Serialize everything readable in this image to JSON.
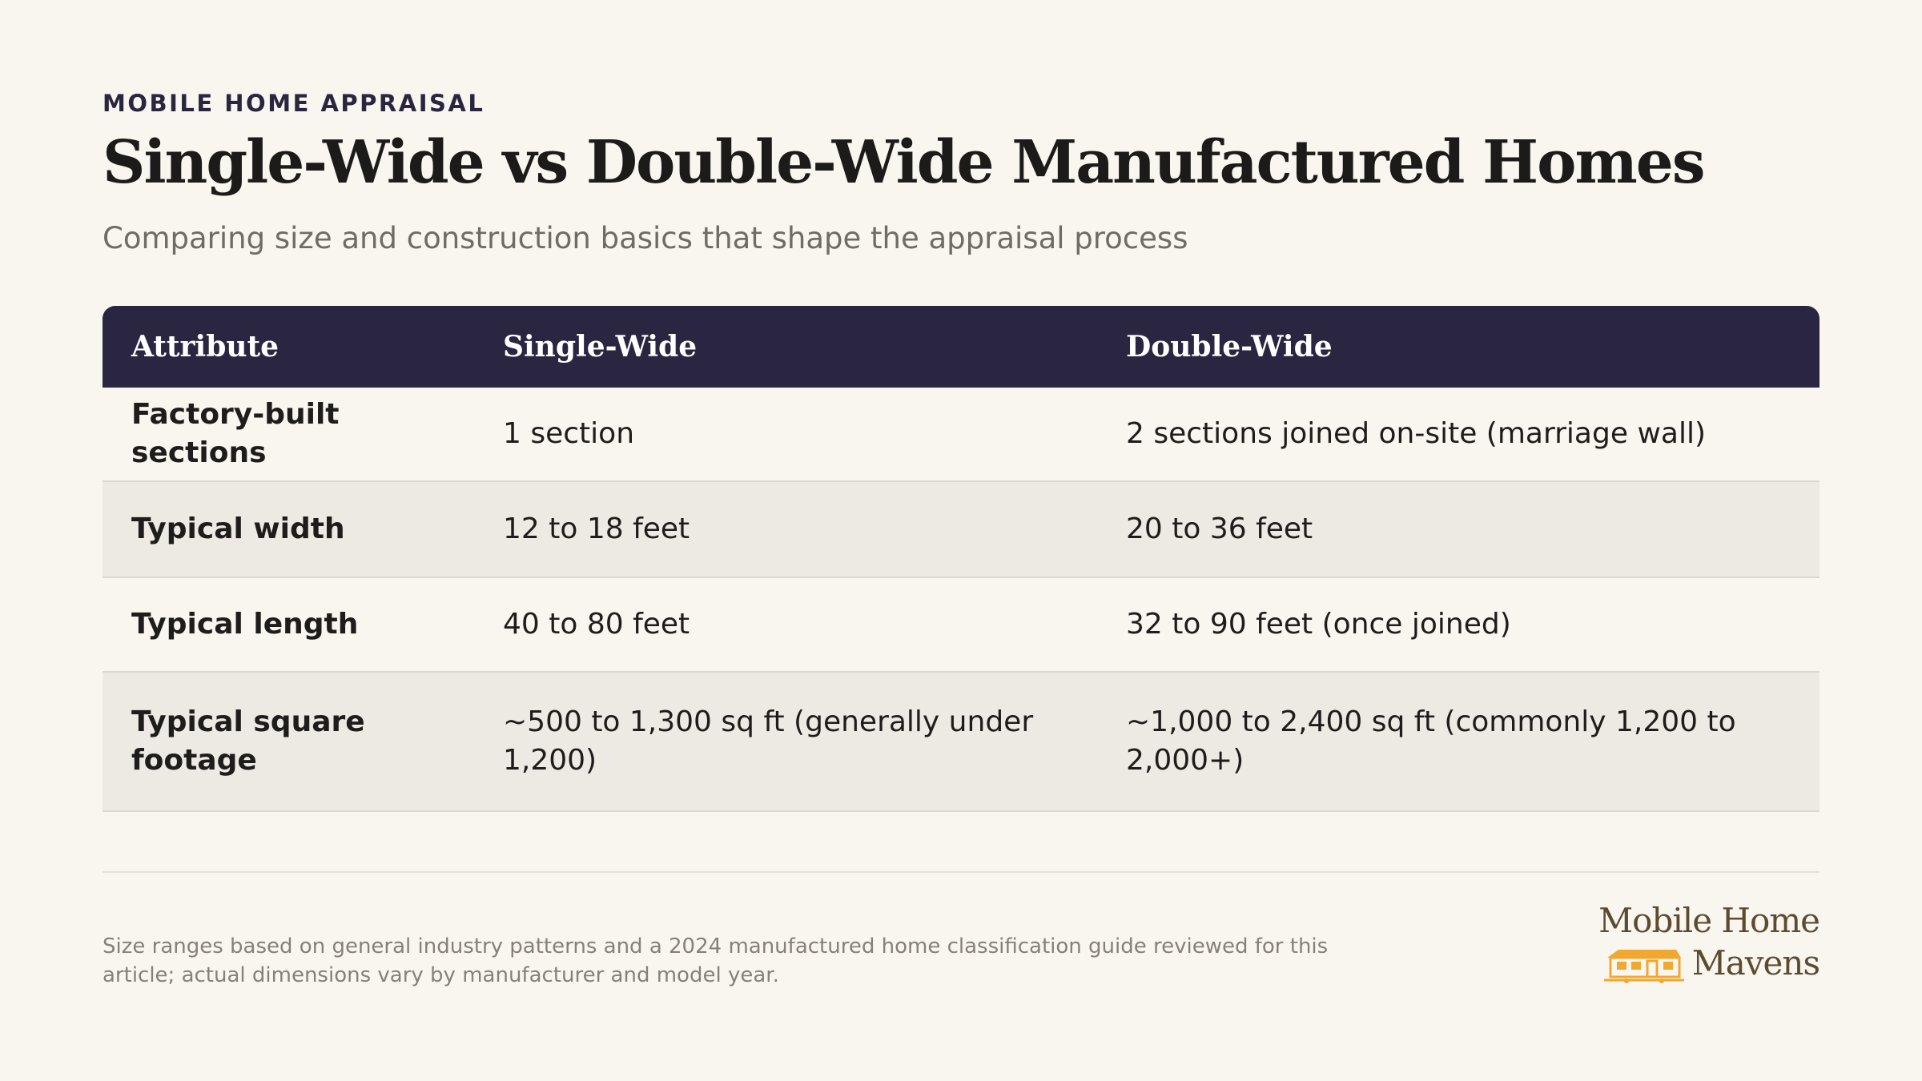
{
  "eyebrow": "MOBILE HOME APPRAISAL",
  "title": "Single-Wide vs Double-Wide Manufactured Homes",
  "subtitle": "Comparing size and construction basics that shape the appraisal process",
  "table": {
    "headers": [
      "Attribute",
      "Single-Wide",
      "Double-Wide"
    ],
    "rows": [
      [
        "Factory-built sections",
        "1 section",
        "2 sections joined on-site (marriage wall)"
      ],
      [
        "Typical width",
        "12 to 18 feet",
        "20 to 36 feet"
      ],
      [
        "Typical length",
        "40 to 80 feet",
        "32 to 90 feet (once joined)"
      ],
      [
        "Typical square footage",
        "~500 to 1,300 sq ft (generally under 1,200)",
        "~1,000 to 2,400 sq ft (commonly 1,200 to 2,000+)"
      ]
    ]
  },
  "footnote": "Size ranges based on general industry patterns and a 2024 manufactured home classification guide reviewed for this article; actual dimensions vary by manufacturer and model year.",
  "logo": {
    "line1": "Mobile Home",
    "line2": "Mavens",
    "icon": "mobile-home-icon",
    "colors": {
      "text": "#5c4b2e",
      "icon": "#f0a830"
    }
  },
  "colors": {
    "background": "#f9f6f0",
    "header_bg": "#2a2540",
    "row_alt": "#edeae4"
  }
}
